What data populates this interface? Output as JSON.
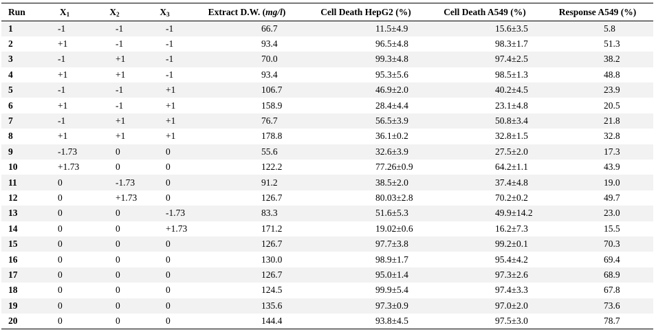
{
  "table": {
    "headers": {
      "run": "Run",
      "x1": "X",
      "x1_sub": "1",
      "x2": "X",
      "x2_sub": "2",
      "x3": "X",
      "x3_sub": "3",
      "extract_prefix": "Extract D.W. (",
      "extract_unit": "mg/l",
      "extract_suffix": ")",
      "hepg2": "Cell Death HepG2 (%)",
      "a549": "Cell Death A549 (%)",
      "response": "Response A549 (%)"
    },
    "rows": [
      {
        "run": "1",
        "x1": "-1",
        "x2": "-1",
        "x3": "-1",
        "extract": "66.7",
        "hepg2": "11.5±4.9",
        "a549": "15.6±3.5",
        "response": "5.8"
      },
      {
        "run": "2",
        "x1": "+1",
        "x2": "-1",
        "x3": "-1",
        "extract": "93.4",
        "hepg2": "96.5±4.8",
        "a549": "98.3±1.7",
        "response": "51.3"
      },
      {
        "run": "3",
        "x1": "-1",
        "x2": "+1",
        "x3": "-1",
        "extract": "70.0",
        "hepg2": "99.3±4.8",
        "a549": "97.4±2.5",
        "response": "38.2"
      },
      {
        "run": "4",
        "x1": "+1",
        "x2": "+1",
        "x3": "-1",
        "extract": "93.4",
        "hepg2": "95.3±5.6",
        "a549": "98.5±1.3",
        "response": "48.8"
      },
      {
        "run": "5",
        "x1": "-1",
        "x2": "-1",
        "x3": "+1",
        "extract": "106.7",
        "hepg2": "46.9±2.0",
        "a549": "40.2±4.5",
        "response": "23.9"
      },
      {
        "run": "6",
        "x1": "+1",
        "x2": "-1",
        "x3": "+1",
        "extract": "158.9",
        "hepg2": "28.4±4.4",
        "a549": "23.1±4.8",
        "response": "20.5"
      },
      {
        "run": "7",
        "x1": "-1",
        "x2": "+1",
        "x3": "+1",
        "extract": "76.7",
        "hepg2": "56.5±3.9",
        "a549": "50.8±3.4",
        "response": "21.8"
      },
      {
        "run": "8",
        "x1": "+1",
        "x2": "+1",
        "x3": "+1",
        "extract": "178.8",
        "hepg2": "36.1±0.2",
        "a549": "32.8±1.5",
        "response": "32.8"
      },
      {
        "run": "9",
        "x1": "-1.73",
        "x2": "0",
        "x3": "0",
        "extract": "55.6",
        "hepg2": "32.6±3.9",
        "a549": "27.5±2.0",
        "response": "17.3"
      },
      {
        "run": "10",
        "x1": "+1.73",
        "x2": "0",
        "x3": "0",
        "extract": "122.2",
        "hepg2": "77.26±0.9",
        "a549": "64.2±1.1",
        "response": "43.9"
      },
      {
        "run": "11",
        "x1": "0",
        "x2": "-1.73",
        "x3": "0",
        "extract": "91.2",
        "hepg2": "38.5±2.0",
        "a549": "37.4±4.8",
        "response": "19.0"
      },
      {
        "run": "12",
        "x1": "0",
        "x2": "+1.73",
        "x3": "0",
        "extract": "126.7",
        "hepg2": "80.03±2.8",
        "a549": "70.2±0.2",
        "response": "49.7"
      },
      {
        "run": "13",
        "x1": "0",
        "x2": "0",
        "x3": "-1.73",
        "extract": "83.3",
        "hepg2": "51.6±5.3",
        "a549": "49.9±14.2",
        "response": "23.0"
      },
      {
        "run": "14",
        "x1": "0",
        "x2": "0",
        "x3": "+1.73",
        "extract": "171.2",
        "hepg2": "19.02±0.6",
        "a549": "16.2±7.3",
        "response": "15.5"
      },
      {
        "run": "15",
        "x1": "0",
        "x2": "0",
        "x3": "0",
        "extract": "126.7",
        "hepg2": "97.7±3.8",
        "a549": "99.2±0.1",
        "response": "70.3"
      },
      {
        "run": "16",
        "x1": "0",
        "x2": "0",
        "x3": "0",
        "extract": "130.0",
        "hepg2": "98.9±1.7",
        "a549": "95.4±4.2",
        "response": "69.4"
      },
      {
        "run": "17",
        "x1": "0",
        "x2": "0",
        "x3": "0",
        "extract": "126.7",
        "hepg2": "95.0±1.4",
        "a549": "97.3±2.6",
        "response": "68.9"
      },
      {
        "run": "18",
        "x1": "0",
        "x2": "0",
        "x3": "0",
        "extract": "124.5",
        "hepg2": "99.9±5.4",
        "a549": "97.4±3.3",
        "response": "67.8"
      },
      {
        "run": "19",
        "x1": "0",
        "x2": "0",
        "x3": "0",
        "extract": "135.6",
        "hepg2": "97.3±0.9",
        "a549": "97.0±2.0",
        "response": "73.6"
      },
      {
        "run": "20",
        "x1": "0",
        "x2": "0",
        "x3": "0",
        "extract": "144.4",
        "hepg2": "93.8±4.5",
        "a549": "97.5±3.0",
        "response": "78.7"
      }
    ]
  }
}
